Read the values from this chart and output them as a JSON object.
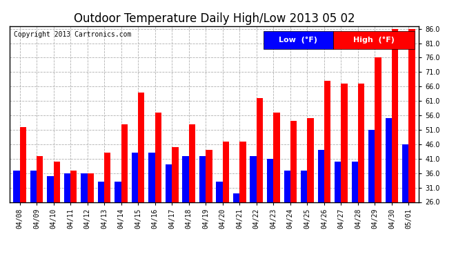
{
  "title": "Outdoor Temperature Daily High/Low 2013 05 02",
  "copyright": "Copyright 2013 Cartronics.com",
  "background_color": "#ffffff",
  "plot_bg_color": "#ffffff",
  "grid_color": "#b0b0b0",
  "dates": [
    "04/08",
    "04/09",
    "04/10",
    "04/11",
    "04/12",
    "04/13",
    "04/14",
    "04/15",
    "04/16",
    "04/17",
    "04/18",
    "04/19",
    "04/20",
    "04/21",
    "04/22",
    "04/23",
    "04/24",
    "04/25",
    "04/26",
    "04/27",
    "04/28",
    "04/29",
    "04/30",
    "05/01"
  ],
  "highs": [
    52,
    42,
    40,
    37,
    36,
    43,
    53,
    64,
    57,
    45,
    53,
    44,
    47,
    47,
    62,
    57,
    54,
    55,
    68,
    67,
    67,
    76,
    86,
    86
  ],
  "lows": [
    37,
    37,
    35,
    36,
    36,
    33,
    33,
    43,
    43,
    39,
    42,
    42,
    33,
    29,
    42,
    41,
    37,
    37,
    44,
    40,
    40,
    51,
    55,
    46
  ],
  "high_color": "#ff0000",
  "low_color": "#0000ff",
  "ylim_min": 26,
  "ylim_max": 87,
  "yticks": [
    26.0,
    31.0,
    36.0,
    41.0,
    46.0,
    51.0,
    56.0,
    61.0,
    66.0,
    71.0,
    76.0,
    81.0,
    86.0
  ],
  "title_fontsize": 12,
  "legend_fontsize": 8,
  "tick_fontsize": 7,
  "copyright_fontsize": 7,
  "bar_width": 0.38
}
